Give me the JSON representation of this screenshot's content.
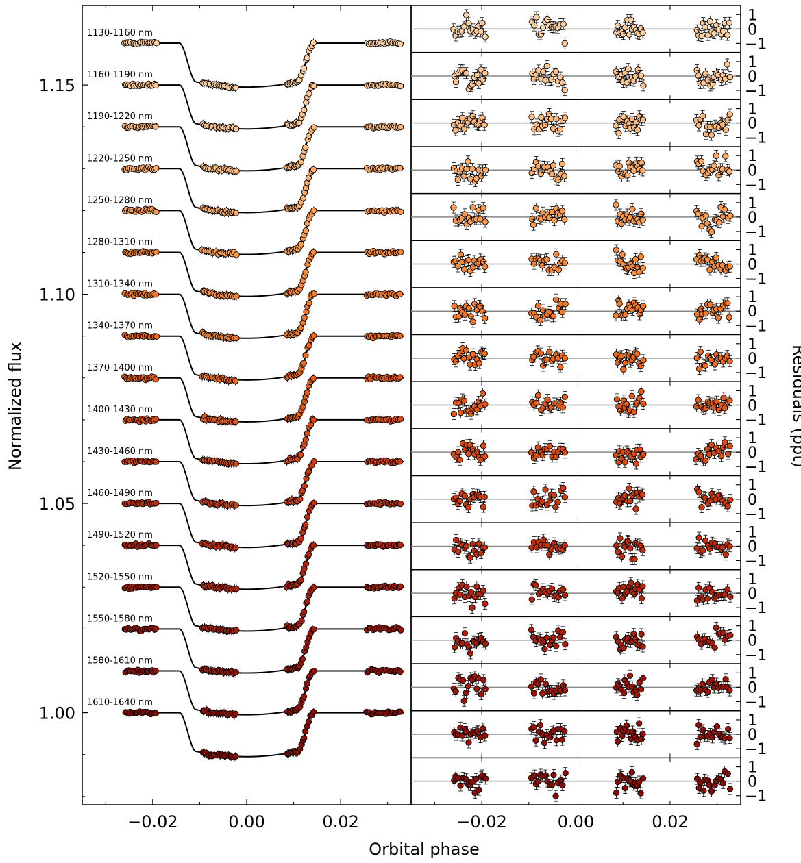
{
  "chart_data": {
    "type": "scatter",
    "panels": [
      {
        "name": "light curves",
        "xlabel": "Orbital phase",
        "ylabel": "Normalized flux",
        "xlim": [
          -0.035,
          0.035
        ],
        "ylim": [
          0.978,
          1.169
        ],
        "x_ticks": [
          "−0.02",
          "0.00",
          "0.02"
        ],
        "y_ticks": [
          "1.00",
          "1.05",
          "1.10",
          "1.15"
        ],
        "offset_between_bands": 0.01,
        "transit_depth": 0.0105
      },
      {
        "name": "residuals",
        "xlabel": "Orbital phase",
        "ylabel": "Residuals (ppt)",
        "xlim": [
          -0.035,
          0.035
        ],
        "ylim_per_band": [
          -1.5,
          1.5
        ],
        "x_ticks": [
          "−0.02",
          "0.00",
          "0.02"
        ],
        "y_ticks": [
          "1",
          "0",
          "−1"
        ]
      }
    ],
    "transit_model": {
      "ingress_start": -0.0143,
      "ingress_end": -0.0108,
      "egress_start": 0.0108,
      "egress_end": 0.0143
    },
    "observation_windows": [
      [
        -0.026,
        -0.019
      ],
      [
        -0.0095,
        -0.002
      ],
      [
        0.0085,
        0.0145
      ],
      [
        0.0255,
        0.033
      ]
    ],
    "series": [
      {
        "name": "1130-1160 nm",
        "baseline": 1.16,
        "color": "#fdd0a2"
      },
      {
        "name": "1160-1190 nm",
        "baseline": 1.15,
        "color": "#fdc591"
      },
      {
        "name": "1190-1220 nm",
        "baseline": 1.14,
        "color": "#fdb97d"
      },
      {
        "name": "1220-1250 nm",
        "baseline": 1.13,
        "color": "#fdab67"
      },
      {
        "name": "1250-1280 nm",
        "baseline": 1.12,
        "color": "#fd9b50"
      },
      {
        "name": "1280-1310 nm",
        "baseline": 1.11,
        "color": "#f88b3b"
      },
      {
        "name": "1310-1340 nm",
        "baseline": 1.1,
        "color": "#f27a2a"
      },
      {
        "name": "1340-1370 nm",
        "baseline": 1.09,
        "color": "#ea6a20"
      },
      {
        "name": "1370-1400 nm",
        "baseline": 1.08,
        "color": "#e25a1a"
      },
      {
        "name": "1400-1430 nm",
        "baseline": 1.07,
        "color": "#d84b16"
      },
      {
        "name": "1430-1460 nm",
        "baseline": 1.06,
        "color": "#cc3c13"
      },
      {
        "name": "1460-1490 nm",
        "baseline": 1.05,
        "color": "#c02f10"
      },
      {
        "name": "1490-1520 nm",
        "baseline": 1.04,
        "color": "#b4250d"
      },
      {
        "name": "1520-1550 nm",
        "baseline": 1.03,
        "color": "#a81d0b"
      },
      {
        "name": "1550-1580 nm",
        "baseline": 1.02,
        "color": "#9d1609"
      },
      {
        "name": "1580-1610 nm",
        "baseline": 1.01,
        "color": "#921108"
      },
      {
        "name": "1610-1640 nm",
        "baseline": 1.0,
        "color": "#870d07"
      }
    ]
  }
}
